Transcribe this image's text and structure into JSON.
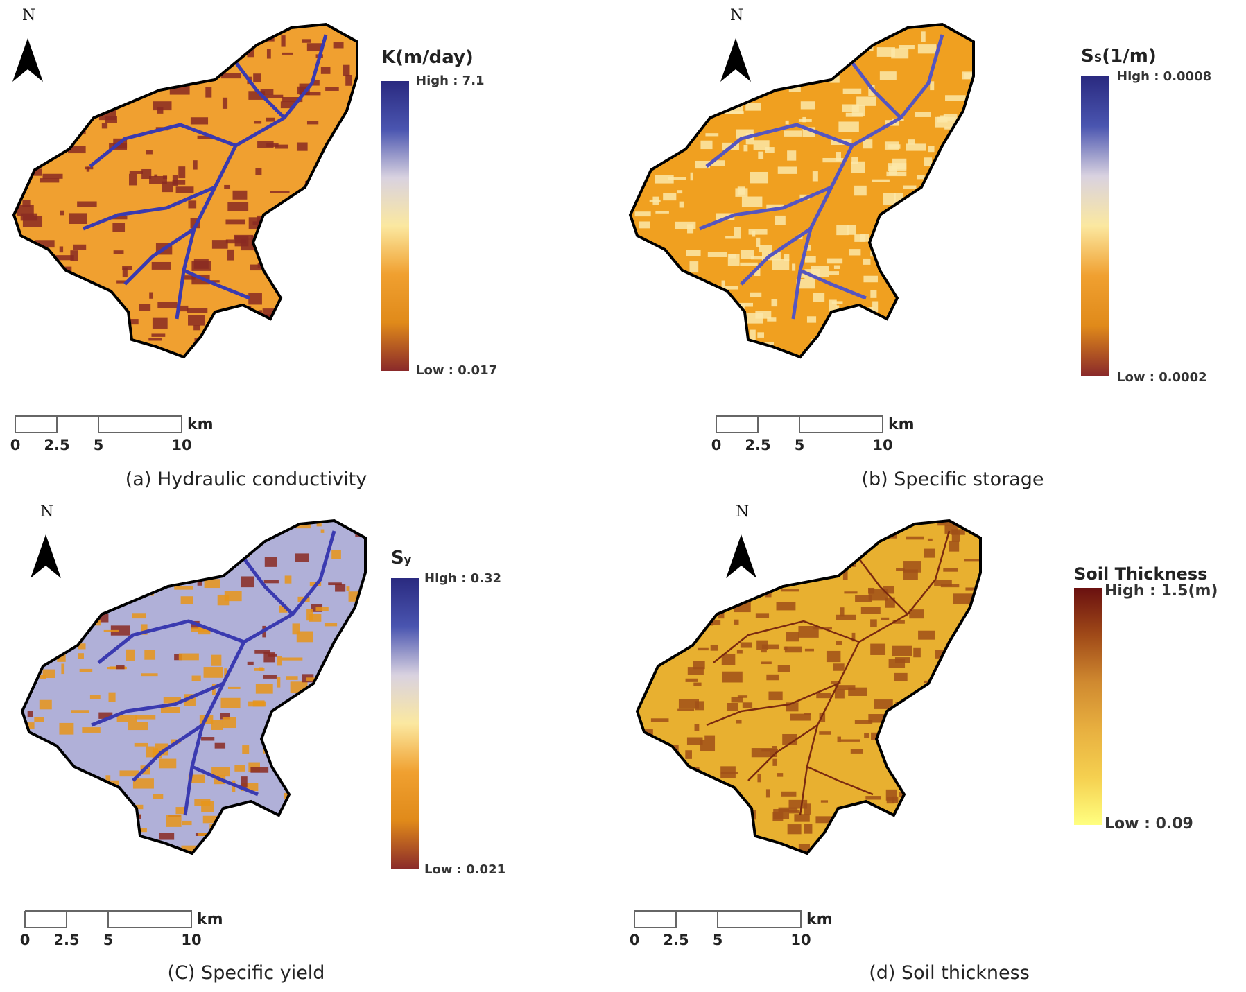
{
  "north_letter": "N",
  "scale_bar": {
    "unit": "km",
    "ticks": [
      "0",
      "2.5",
      "5",
      "10"
    ]
  },
  "panels": [
    {
      "caption": "(a) Hydraulic conductivity",
      "legend_title": "K(m/day)",
      "legend_high": "High : 7.1",
      "legend_low": "Low : 0.017",
      "ramp_colors": [
        "#2a2a80",
        "#4a55b0",
        "#d9d2e0",
        "#fbe8a0",
        "#f0a030",
        "#e08a1a",
        "#8a2a2a"
      ],
      "map_colors": {
        "base": "#f0a030",
        "patch": "#8a2a22",
        "stream": "#3a3ab0"
      }
    },
    {
      "caption": "(b) Specific storage",
      "legend_title": "S",
      "legend_title_sub": "S",
      "legend_title_suffix": "(1/m)",
      "legend_high": "High : 0.0008",
      "legend_low": "Low : 0.0002",
      "ramp_colors": [
        "#2a2a80",
        "#4a55b0",
        "#d9d2e0",
        "#fbe8a0",
        "#f0a030",
        "#e08a1a",
        "#8a2a2a"
      ],
      "map_colors": {
        "base": "#f0a020",
        "patch": "#fbe8a8",
        "stream": "#5555c0"
      }
    },
    {
      "caption": "(C) Specific yield",
      "legend_title": "S",
      "legend_title_sub": "y",
      "legend_high": "High : 0.32",
      "legend_low": "Low : 0.021",
      "ramp_colors": [
        "#2a2a80",
        "#4a55b0",
        "#d9d2e0",
        "#fbe8a0",
        "#f0a030",
        "#e08a1a",
        "#8a2a2a"
      ],
      "map_colors": {
        "base": "#b0b0d8",
        "patch": "#e8951a",
        "stream": "#3a3ab0",
        "dark": "#8a2a22"
      }
    },
    {
      "caption": "(d) Soil thickness",
      "legend_title": "Soil Thickness",
      "legend_high": "High : 1.5(m)",
      "legend_low": "Low : 0.09",
      "ramp_colors": [
        "#6a1010",
        "#a04a18",
        "#d08a30",
        "#e8b040",
        "#f5d050",
        "#ffff80"
      ],
      "map_colors": {
        "base": "#e8b030",
        "patch": "#a05018",
        "stream": "#7a2a10"
      }
    }
  ]
}
